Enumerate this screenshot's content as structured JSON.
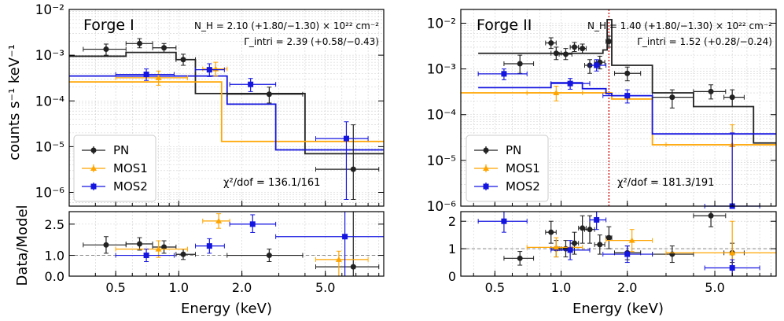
{
  "figure": {
    "ylabel_top": "counts s⁻¹ keV⁻¹",
    "ylabel_bottom": "Data/Model",
    "xlabel": "Energy (keV)"
  },
  "chart_data": [
    {
      "type": "line",
      "title": "Forge I",
      "xscale": "log",
      "yscale": "log",
      "xlim": [
        0.3,
        9.5
      ],
      "ylim": [
        5e-07,
        0.01
      ],
      "xticks": [
        0.5,
        1.0,
        2.0,
        5.0
      ],
      "xticklabels": [
        "0.5",
        "1.0",
        "2.0",
        "5.0"
      ],
      "yticks": [
        1e-06,
        1e-05,
        0.0001,
        0.001,
        0.01
      ],
      "yticklabels": [
        "10⁻⁶",
        "10⁻⁵",
        "10⁻⁴",
        "10⁻³",
        "10⁻²"
      ],
      "annotation_nh": "N_H = 2.10 (+1.80/−1.30) × 10²² cm⁻²",
      "annotation_gamma": "Γ_intri = 2.39 (+0.58/−0.43)",
      "chi2": "χ²/dof = 136.1/161",
      "legend": [
        "PN",
        "MOS1",
        "MOS2"
      ],
      "legend_position": "lower-left",
      "colors": {
        "PN": "#222222",
        "MOS1": "#ffa500",
        "MOS2": "#1515e0"
      },
      "series": [
        {
          "name": "PN",
          "points": [
            [
              0.45,
              0.00135,
              0.35,
              0.56,
              0.001,
              0.00175
            ],
            [
              0.65,
              0.0018,
              0.56,
              0.75,
              0.00145,
              0.0023
            ],
            [
              0.85,
              0.00145,
              0.75,
              0.97,
              0.00115,
              0.0018
            ],
            [
              1.05,
              0.0008,
              0.97,
              1.2,
              0.0006,
              0.00105
            ],
            [
              2.7,
              0.00014,
              1.7,
              3.9,
              9e-05,
              0.0002
            ],
            [
              6.8,
              3.2e-06,
              4.5,
              9.0,
              7e-07,
              3e-05
            ]
          ]
        },
        {
          "name": "MOS1",
          "points": [
            [
              0.8,
              0.00032,
              0.5,
              1.1,
              0.00022,
              0.00045
            ],
            [
              1.5,
              0.0005,
              1.3,
              1.7,
              0.00035,
              0.0007
            ]
          ]
        },
        {
          "name": "MOS2",
          "points": [
            [
              0.7,
              0.00038,
              0.5,
              0.95,
              0.00028,
              0.0005
            ],
            [
              1.4,
              0.00048,
              1.2,
              1.65,
              0.00034,
              0.00065
            ],
            [
              2.2,
              0.00023,
              1.75,
              2.9,
              0.00016,
              0.00031
            ],
            [
              6.3,
              1.5e-05,
              4.5,
              8.0,
              7e-07,
              3.5e-05
            ]
          ]
        }
      ],
      "models": [
        {
          "name": "PN",
          "steps": [
            [
              0.3,
              0.00095
            ],
            [
              0.56,
              0.00115
            ],
            [
              0.97,
              0.0008
            ],
            [
              1.2,
              0.000145
            ],
            [
              2.8,
              0.000145
            ],
            [
              4.0,
              7e-06
            ],
            [
              9.5,
              7e-06
            ]
          ]
        },
        {
          "name": "MOS1",
          "steps": [
            [
              0.3,
              0.00026
            ],
            [
              1.3,
              0.00026
            ],
            [
              1.6,
              1.3e-05
            ],
            [
              9.5,
              1.3e-05
            ]
          ]
        },
        {
          "name": "MOS2",
          "steps": [
            [
              0.3,
              0.00035
            ],
            [
              1.25,
              0.00035
            ],
            [
              1.7,
              8.5e-05
            ],
            [
              2.9,
              8.5e-06
            ],
            [
              9.5,
              8.5e-06
            ]
          ]
        }
      ],
      "residuals": {
        "ylim": [
          0,
          3.1
        ],
        "yticks": [
          0,
          1.0,
          2.5
        ],
        "yticklabels": [
          "0.0",
          "1.0",
          "2.5"
        ],
        "series": [
          {
            "name": "PN",
            "points": [
              [
                0.45,
                1.5,
                0.35,
                0.56,
                1.1,
                1.9
              ],
              [
                0.65,
                1.55,
                0.56,
                0.75,
                1.25,
                1.85
              ],
              [
                0.85,
                1.4,
                0.75,
                0.97,
                1.1,
                1.7
              ],
              [
                1.05,
                1.05,
                0.97,
                1.2,
                0.8,
                1.3
              ],
              [
                2.7,
                1.0,
                1.7,
                3.9,
                0.7,
                1.3
              ],
              [
                6.8,
                0.45,
                4.5,
                9.0,
                0,
                3.1
              ]
            ]
          },
          {
            "name": "MOS1",
            "points": [
              [
                0.8,
                1.3,
                0.5,
                1.1,
                0.9,
                1.7
              ],
              [
                1.55,
                2.65,
                1.3,
                1.75,
                2.3,
                3.0
              ],
              [
                5.8,
                0.8,
                4.5,
                8.0,
                0,
                1.2
              ]
            ]
          },
          {
            "name": "MOS2",
            "points": [
              [
                0.7,
                1.0,
                0.5,
                0.95,
                0.7,
                1.3
              ],
              [
                1.4,
                1.45,
                1.2,
                1.65,
                1.1,
                1.8
              ],
              [
                2.25,
                2.5,
                1.75,
                2.9,
                2.1,
                2.95
              ],
              [
                6.2,
                1.9,
                2.9,
                9.5,
                0,
                3.1
              ]
            ]
          }
        ]
      }
    },
    {
      "type": "line",
      "title": "Forge II",
      "xscale": "log",
      "yscale": "log",
      "xlim": [
        0.35,
        9.5
      ],
      "ylim": [
        1e-06,
        0.02
      ],
      "xticks": [
        0.5,
        1.0,
        2.0,
        5.0
      ],
      "xticklabels": [
        "0.5",
        "1.0",
        "2.0",
        "5.0"
      ],
      "yticks": [
        1e-06,
        1e-05,
        0.0001,
        0.001,
        0.01
      ],
      "yticklabels": [
        "10⁻⁶",
        "10⁻⁵",
        "10⁻⁴",
        "10⁻³",
        "10⁻²"
      ],
      "annotation_nh": "N_H = 1.40 (+1.80/−1.30) × 10²² cm⁻²",
      "annotation_gamma": "Γ_intri = 1.52 (+0.28/−0.24)",
      "chi2": "χ²/dof = 181.3/191",
      "legend": [
        "PN",
        "MOS1",
        "MOS2"
      ],
      "legend_position": "lower-left",
      "line_energy_keV": 1.65,
      "colors": {
        "PN": "#222222",
        "MOS1": "#ffa500",
        "MOS2": "#1515e0"
      },
      "series": [
        {
          "name": "PN",
          "points": [
            [
              0.65,
              0.0013,
              0.55,
              0.75,
              0.0008,
              0.002
            ],
            [
              0.9,
              0.0037,
              0.85,
              0.95,
              0.0028,
              0.0048
            ],
            [
              0.95,
              0.0022,
              0.9,
              1.0,
              0.0016,
              0.003
            ],
            [
              1.05,
              0.0021,
              0.98,
              1.12,
              0.0016,
              0.0028
            ],
            [
              1.15,
              0.003,
              1.1,
              1.2,
              0.0024,
              0.0038
            ],
            [
              1.25,
              0.0028,
              1.2,
              1.3,
              0.0022,
              0.0035
            ],
            [
              1.35,
              0.0012,
              1.28,
              1.42,
              0.0008,
              0.0016
            ],
            [
              1.5,
              0.0014,
              1.42,
              1.58,
              0.001,
              0.0019
            ],
            [
              1.65,
              0.004,
              1.6,
              1.7,
              0.003,
              0.0052
            ],
            [
              2.0,
              0.0008,
              1.75,
              2.3,
              0.00055,
              0.0011
            ],
            [
              3.2,
              0.00024,
              2.6,
              4.0,
              0.00014,
              0.00035
            ],
            [
              4.8,
              0.00032,
              4.0,
              5.6,
              0.00022,
              0.00045
            ],
            [
              6.0,
              0.00024,
              5.5,
              6.8,
              0.00015,
              0.00035
            ]
          ]
        },
        {
          "name": "MOS1",
          "points": [
            [
              0.95,
              0.0003,
              0.7,
              1.25,
              0.0002,
              0.00042
            ],
            [
              6.0,
              2.2e-05,
              3.0,
              9.5,
              1e-06,
              6e-05
            ]
          ]
        },
        {
          "name": "MOS2",
          "points": [
            [
              0.55,
              0.00078,
              0.42,
              0.7,
              0.00058,
              0.001
            ],
            [
              1.1,
              0.00048,
              0.9,
              1.35,
              0.00036,
              0.00062
            ],
            [
              1.45,
              0.0012,
              1.35,
              1.6,
              0.0009,
              0.0016
            ],
            [
              2.0,
              0.00026,
              1.55,
              2.6,
              0.00018,
              0.00035
            ],
            [
              6.0,
              1e-06,
              4.5,
              8.0,
              1e-06,
              4e-05
            ]
          ]
        }
      ],
      "models": [
        {
          "name": "PN",
          "steps": [
            [
              0.42,
              0.0022
            ],
            [
              1.2,
              0.0022
            ],
            [
              1.55,
              0.0026
            ],
            [
              1.62,
              0.012
            ],
            [
              1.7,
              0.0012
            ],
            [
              2.3,
              0.0012
            ],
            [
              2.6,
              0.0003
            ],
            [
              4.0,
              0.00015
            ],
            [
              7.5,
              2.4e-05
            ],
            [
              8.5,
              2.4e-05
            ]
          ]
        },
        {
          "name": "MOS1",
          "steps": [
            [
              0.35,
              0.0003
            ],
            [
              1.55,
              0.0003
            ],
            [
              1.7,
              0.00022
            ],
            [
              2.6,
              2.2e-05
            ],
            [
              9.5,
              2.2e-05
            ]
          ]
        },
        {
          "name": "MOS2",
          "steps": [
            [
              0.42,
              0.00039
            ],
            [
              0.9,
              0.0005
            ],
            [
              1.25,
              0.00037
            ],
            [
              1.6,
              0.00029
            ],
            [
              1.7,
              0.00026
            ],
            [
              2.6,
              3.8e-05
            ],
            [
              9.5,
              3.8e-05
            ]
          ]
        }
      ],
      "residuals": {
        "ylim": [
          0,
          2.35
        ],
        "yticks": [
          0,
          1,
          2
        ],
        "yticklabels": [
          "0",
          "1",
          "2"
        ],
        "series": [
          {
            "name": "PN",
            "points": [
              [
                0.65,
                0.65,
                0.55,
                0.75,
                0.4,
                0.9
              ],
              [
                0.9,
                1.6,
                0.85,
                0.95,
                1.2,
                2.0
              ],
              [
                0.95,
                1.0,
                0.9,
                1.0,
                0.7,
                1.3
              ],
              [
                1.05,
                1.0,
                0.98,
                1.12,
                0.7,
                1.3
              ],
              [
                1.15,
                1.2,
                1.1,
                1.2,
                0.8,
                1.6
              ],
              [
                1.25,
                1.75,
                1.2,
                1.3,
                1.2,
                2.2
              ],
              [
                1.35,
                1.7,
                1.28,
                1.42,
                1.2,
                2.2
              ],
              [
                1.5,
                1.15,
                1.42,
                1.58,
                0.8,
                1.5
              ],
              [
                1.65,
                1.4,
                1.6,
                1.7,
                1.0,
                1.8
              ],
              [
                2.0,
                0.85,
                1.75,
                2.3,
                0.6,
                1.1
              ],
              [
                3.2,
                0.8,
                2.6,
                4.0,
                0.5,
                1.1
              ],
              [
                4.8,
                2.2,
                4.0,
                5.6,
                1.8,
                2.35
              ],
              [
                6.0,
                0.85,
                5.5,
                6.8,
                0.5,
                1.2
              ]
            ]
          },
          {
            "name": "MOS1",
            "points": [
              [
                0.95,
                1.05,
                0.7,
                1.25,
                0.7,
                1.4
              ],
              [
                2.1,
                1.3,
                1.6,
                2.6,
                0.9,
                1.7
              ],
              [
                6.0,
                0.85,
                3.0,
                9.5,
                0,
                2.0
              ]
            ]
          },
          {
            "name": "MOS2",
            "points": [
              [
                0.55,
                2.0,
                0.42,
                0.7,
                1.6,
                2.35
              ],
              [
                1.1,
                0.95,
                0.9,
                1.35,
                0.6,
                1.3
              ],
              [
                1.45,
                2.05,
                1.35,
                1.6,
                1.7,
                2.35
              ],
              [
                2.0,
                0.8,
                1.55,
                2.6,
                0.5,
                1.1
              ],
              [
                6.0,
                0.3,
                4.5,
                8.0,
                0,
                0.6
              ]
            ]
          }
        ]
      }
    }
  ]
}
